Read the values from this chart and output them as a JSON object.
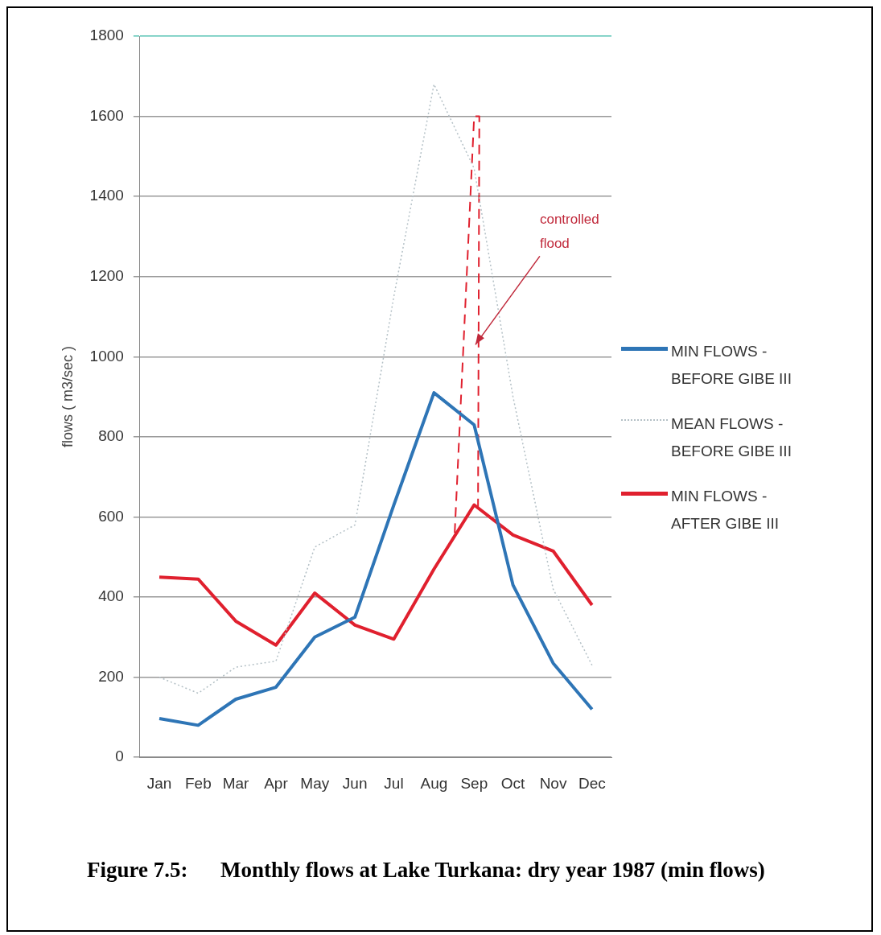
{
  "chart_data": {
    "type": "line",
    "title": "Figure 7.5:      Monthly flows at Lake Turkana: dry year 1987 (min flows)",
    "ylabel": "flows ( m3/sec )",
    "x": [
      "--01-16",
      "--02-15",
      "--03-16",
      "--04-16",
      "--05-16",
      "--06-16",
      "--07-16",
      "--08-16",
      "--09-16",
      "--10-16",
      "--11-16",
      "--12-16"
    ],
    "xlim": [
      "--01-01",
      "--12-31"
    ],
    "xticks": [
      {
        "value": "--01-16",
        "label": "Jan"
      },
      {
        "value": "--02-15",
        "label": "Feb"
      },
      {
        "value": "--03-16",
        "label": "Mar"
      },
      {
        "value": "--04-16",
        "label": "Apr"
      },
      {
        "value": "--05-16",
        "label": "May"
      },
      {
        "value": "--06-16",
        "label": "Jun"
      },
      {
        "value": "--07-16",
        "label": "Jul"
      },
      {
        "value": "--08-16",
        "label": "Aug"
      },
      {
        "value": "--09-16",
        "label": "Sep"
      },
      {
        "value": "--10-16",
        "label": "Oct"
      },
      {
        "value": "--11-16",
        "label": "Nov"
      },
      {
        "value": "--12-16",
        "label": "Dec"
      }
    ],
    "ylim": [
      0,
      1800
    ],
    "yticks": [
      0,
      200,
      400,
      600,
      800,
      1000,
      1200,
      1400,
      1600,
      1800
    ],
    "grid": "y",
    "legend": "right",
    "series": [
      {
        "name": "MIN FLOWS - BEFORE GIBE III",
        "color": "#2e75b6",
        "line_style": "solid",
        "values": [
          97,
          80,
          145,
          175,
          300,
          350,
          630,
          910,
          830,
          430,
          235,
          120
        ]
      },
      {
        "name": "MEAN FLOWS - BEFORE GIBE III",
        "color": "#b4c0c6",
        "line_style": "dotted",
        "values": [
          200,
          160,
          225,
          240,
          525,
          580,
          1150,
          1680,
          1470,
          900,
          420,
          230
        ]
      },
      {
        "name": "MIN FLOWS - AFTER GIBE III",
        "color": "#e0202e",
        "line_style": "solid",
        "values": [
          450,
          445,
          340,
          280,
          410,
          330,
          295,
          470,
          630,
          555,
          515,
          380
        ]
      },
      {
        "color": "#e0202e",
        "line_style": "dashed",
        "x": [
          "--09-01",
          "--09-16",
          "--09-20",
          "--09-19"
        ],
        "values": [
          560,
          1600,
          1600,
          620
        ]
      }
    ],
    "annotations": [
      {
        "text": "controlled flood",
        "x": "--09-17",
        "y": 1030
      }
    ]
  }
}
